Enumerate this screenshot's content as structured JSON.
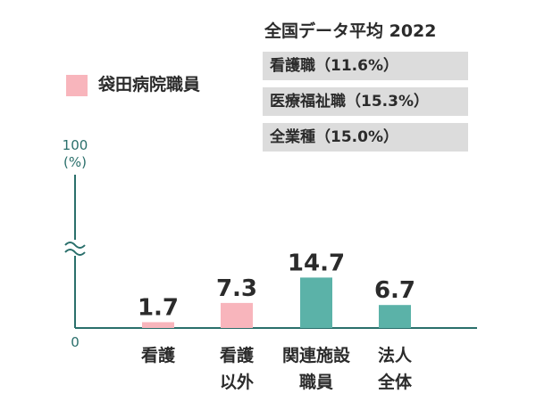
{
  "reference": {
    "title": "全国データ平均 2022",
    "items": [
      {
        "label": "看護職（11.6%）"
      },
      {
        "label": "医療福祉職（15.3%）"
      },
      {
        "label": "全業種（15.0%）"
      }
    ]
  },
  "legend": {
    "label": "袋田病院職員"
  },
  "colors": {
    "pink": "#f8b5bc",
    "teal": "#5bb2a8",
    "axis": "#2a6f6b",
    "ref_bg": "#dcdcdc"
  },
  "chart_data": {
    "type": "bar",
    "categories": [
      [
        "看護"
      ],
      [
        "看護",
        "以外"
      ],
      [
        "関連施設",
        "職員"
      ],
      [
        "法人",
        "全体"
      ]
    ],
    "values": [
      1.7,
      7.3,
      14.7,
      6.7
    ],
    "value_labels": [
      "1.7",
      "7.3",
      "14.7",
      "6.7"
    ],
    "bar_colors": [
      "pink",
      "pink",
      "teal",
      "teal"
    ],
    "y_ticks": {
      "top": "100",
      "top_unit": "(%)",
      "bottom": "0"
    },
    "axis_break": true,
    "ylim": [
      0,
      100
    ]
  }
}
